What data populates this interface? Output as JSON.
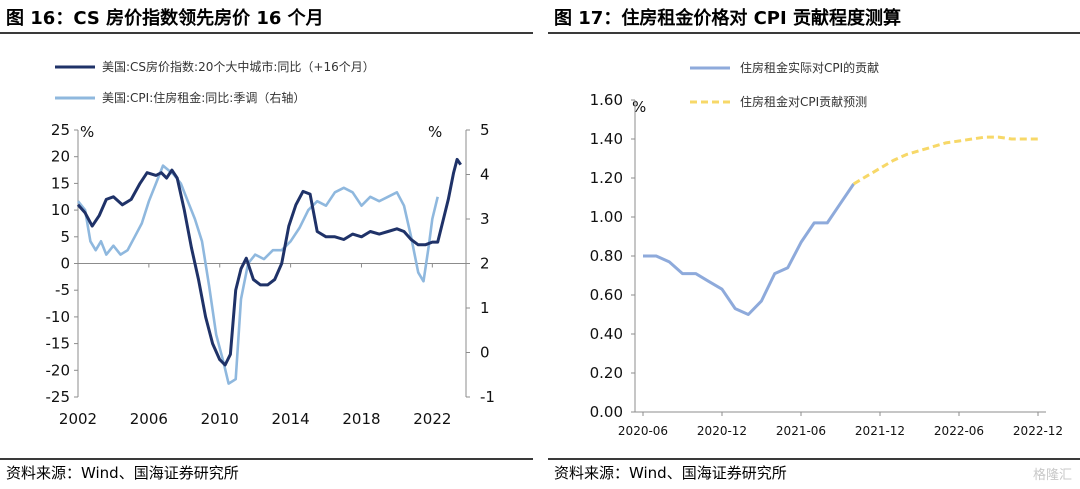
{
  "left_panel": {
    "title": "图 16：CS 房价指数领先房价 16 个月",
    "source": "资料来源：Wind、国海证券研究所"
  },
  "right_panel": {
    "title": "图 17：住房租金价格对 CPI 贡献程度测算",
    "source": "资料来源：Wind、国海证券研究所"
  },
  "watermark": "格隆汇",
  "colors": {
    "dark_series": "#1f3268",
    "light_series": "#8fb8de",
    "actual_series": "#8eaadb",
    "forecast_series": "#f7d868"
  },
  "chart_data": [
    {
      "type": "line",
      "title": "图 16：CS 房价指数领先房价 16 个月",
      "unit_left": "%",
      "unit_right": "%",
      "x_tick_labels": [
        "2002",
        "2006",
        "2010",
        "2014",
        "2018",
        "2022"
      ],
      "ylim_left": [
        -25,
        25
      ],
      "yticks_left": [
        "25",
        "20",
        "15",
        "10",
        "5",
        "0",
        "-5",
        "-10",
        "-15",
        "-20",
        "-25"
      ],
      "ylim_right": [
        -1,
        5
      ],
      "yticks_right": [
        "5",
        "4",
        "3",
        "2",
        "1",
        "0",
        "-1"
      ],
      "legend_position": "top-left",
      "grid": false,
      "series": [
        {
          "name": "美国:CS房价指数:20个大中城市:同比（+16个月）",
          "axis": "left",
          "color": "#1f3268",
          "points": [
            [
              2002.0,
              11
            ],
            [
              2002.4,
              9.5
            ],
            [
              2002.8,
              7
            ],
            [
              2003.2,
              9
            ],
            [
              2003.6,
              12
            ],
            [
              2004.0,
              12.5
            ],
            [
              2004.5,
              11
            ],
            [
              2005.0,
              12
            ],
            [
              2005.5,
              15
            ],
            [
              2005.9,
              17
            ],
            [
              2006.4,
              16.5
            ],
            [
              2006.7,
              17
            ],
            [
              2007.0,
              16
            ],
            [
              2007.3,
              17.5
            ],
            [
              2007.6,
              16
            ],
            [
              2008.0,
              10
            ],
            [
              2008.4,
              3
            ],
            [
              2008.8,
              -3
            ],
            [
              2009.2,
              -10
            ],
            [
              2009.6,
              -15
            ],
            [
              2010.0,
              -18
            ],
            [
              2010.3,
              -19
            ],
            [
              2010.6,
              -17
            ],
            [
              2010.9,
              -5
            ],
            [
              2011.2,
              -1
            ],
            [
              2011.5,
              1
            ],
            [
              2011.9,
              -3
            ],
            [
              2012.3,
              -4
            ],
            [
              2012.7,
              -4
            ],
            [
              2013.1,
              -3
            ],
            [
              2013.5,
              0
            ],
            [
              2013.9,
              7
            ],
            [
              2014.3,
              11
            ],
            [
              2014.7,
              13.5
            ],
            [
              2015.1,
              13
            ],
            [
              2015.5,
              6
            ],
            [
              2016.0,
              5
            ],
            [
              2016.5,
              5
            ],
            [
              2017.0,
              4.5
            ],
            [
              2017.5,
              5.5
            ],
            [
              2018.0,
              5
            ],
            [
              2018.5,
              6
            ],
            [
              2019.0,
              5.5
            ],
            [
              2019.5,
              6
            ],
            [
              2020.0,
              6.5
            ],
            [
              2020.4,
              6
            ],
            [
              2020.8,
              4.5
            ],
            [
              2021.2,
              3.5
            ],
            [
              2021.6,
              3.5
            ],
            [
              2022.0,
              4
            ],
            [
              2022.3,
              4
            ],
            [
              2022.6,
              8
            ],
            [
              2022.9,
              12
            ],
            [
              2023.2,
              17
            ],
            [
              2023.4,
              19.5
            ],
            [
              2023.6,
              18.5
            ]
          ]
        },
        {
          "name": "美国:CPI:住房租金:同比:季调（右轴）",
          "axis": "right",
          "color": "#8fb8de",
          "points": [
            [
              2002.0,
              3.4
            ],
            [
              2002.4,
              3.2
            ],
            [
              2002.7,
              2.5
            ],
            [
              2003.0,
              2.3
            ],
            [
              2003.3,
              2.5
            ],
            [
              2003.6,
              2.2
            ],
            [
              2004.0,
              2.4
            ],
            [
              2004.4,
              2.2
            ],
            [
              2004.8,
              2.3
            ],
            [
              2005.2,
              2.6
            ],
            [
              2005.6,
              2.9
            ],
            [
              2006.0,
              3.4
            ],
            [
              2006.4,
              3.8
            ],
            [
              2006.8,
              4.2
            ],
            [
              2007.1,
              4.1
            ],
            [
              2007.4,
              4.0
            ],
            [
              2007.8,
              3.8
            ],
            [
              2008.2,
              3.4
            ],
            [
              2008.6,
              3.0
            ],
            [
              2009.0,
              2.5
            ],
            [
              2009.4,
              1.5
            ],
            [
              2009.8,
              0.4
            ],
            [
              2010.2,
              -0.2
            ],
            [
              2010.5,
              -0.7
            ],
            [
              2010.9,
              -0.6
            ],
            [
              2011.2,
              1.2
            ],
            [
              2011.6,
              2.0
            ],
            [
              2012.0,
              2.2
            ],
            [
              2012.5,
              2.1
            ],
            [
              2013.0,
              2.3
            ],
            [
              2013.5,
              2.3
            ],
            [
              2014.0,
              2.5
            ],
            [
              2014.5,
              2.8
            ],
            [
              2015.0,
              3.2
            ],
            [
              2015.5,
              3.4
            ],
            [
              2016.0,
              3.3
            ],
            [
              2016.5,
              3.6
            ],
            [
              2017.0,
              3.7
            ],
            [
              2017.5,
              3.6
            ],
            [
              2018.0,
              3.3
            ],
            [
              2018.5,
              3.5
            ],
            [
              2019.0,
              3.4
            ],
            [
              2019.5,
              3.5
            ],
            [
              2020.0,
              3.6
            ],
            [
              2020.4,
              3.3
            ],
            [
              2020.8,
              2.6
            ],
            [
              2021.2,
              1.8
            ],
            [
              2021.5,
              1.6
            ],
            [
              2021.8,
              2.4
            ],
            [
              2022.0,
              3.0
            ],
            [
              2022.3,
              3.5
            ]
          ]
        }
      ]
    },
    {
      "type": "line",
      "title": "图 17：住房租金价格对 CPI 贡献程度测算",
      "unit_left": "%",
      "x": [
        "2020-06",
        "2020-07",
        "2020-08",
        "2020-09",
        "2020-10",
        "2020-11",
        "2020-12",
        "2021-01",
        "2021-02",
        "2021-03",
        "2021-04",
        "2021-05",
        "2021-06",
        "2021-07",
        "2021-08",
        "2021-09",
        "2021-10",
        "2021-11",
        "2021-12",
        "2022-01",
        "2022-02",
        "2022-03",
        "2022-04",
        "2022-05",
        "2022-06",
        "2022-07",
        "2022-08",
        "2022-09",
        "2022-10",
        "2022-11",
        "2022-12"
      ],
      "x_tick_labels": [
        "2020-06",
        "2020-12",
        "2021-06",
        "2021-12",
        "2022-06",
        "2022-12"
      ],
      "ylim": [
        0,
        1.6
      ],
      "yticks": [
        "1.60",
        "1.40",
        "1.20",
        "1.00",
        "0.80",
        "0.60",
        "0.40",
        "0.20",
        "0.00"
      ],
      "legend_position": "top-left",
      "grid": false,
      "series": [
        {
          "name": "住房租金实际对CPI的贡献",
          "style": "solid",
          "color": "#8eaadb",
          "values": [
            0.8,
            0.8,
            0.77,
            0.71,
            0.71,
            0.67,
            0.63,
            0.53,
            0.5,
            0.57,
            0.71,
            0.74,
            0.87,
            0.97,
            0.97,
            1.07,
            1.17,
            null,
            null,
            null,
            null,
            null,
            null,
            null,
            null,
            null,
            null,
            null,
            null,
            null,
            null
          ]
        },
        {
          "name": "住房租金对CPI贡献预测",
          "style": "dashed",
          "color": "#f7d868",
          "values": [
            null,
            null,
            null,
            null,
            null,
            null,
            null,
            null,
            null,
            null,
            null,
            null,
            null,
            null,
            null,
            null,
            1.17,
            1.21,
            1.25,
            1.29,
            1.32,
            1.34,
            1.36,
            1.38,
            1.39,
            1.4,
            1.41,
            1.41,
            1.4,
            1.4,
            1.4
          ]
        }
      ]
    }
  ]
}
